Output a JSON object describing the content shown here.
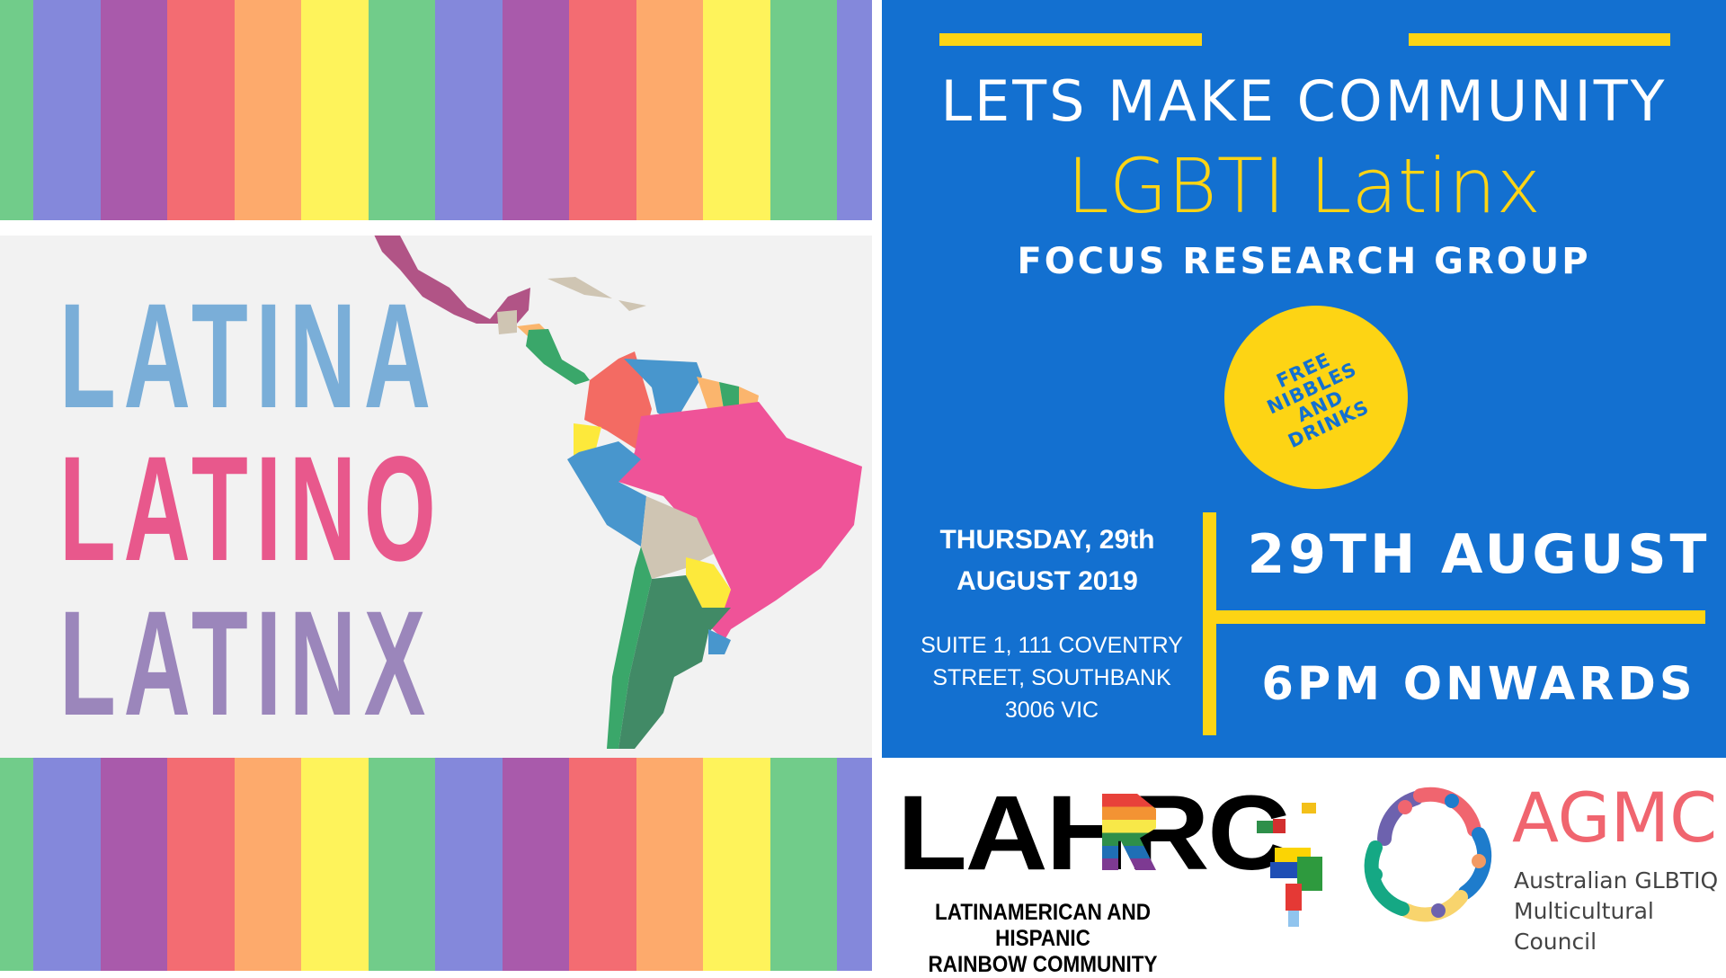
{
  "stripe_colors": [
    "#71cc8a",
    "#8488db",
    "#a95aab",
    "#f36c72",
    "#fdaa6c",
    "#fef35b",
    "#71cc8a",
    "#8488db",
    "#a95aab",
    "#f36c72",
    "#fdaa6c",
    "#fef35b",
    "#71cc8a",
    "#8488db"
  ],
  "left_panel": {
    "words": [
      {
        "text": "LATINA",
        "color": "#7aaed8"
      },
      {
        "text": "LATINO",
        "color": "#e8588c"
      },
      {
        "text": "LATINX",
        "color": "#9b86bb"
      }
    ],
    "map_image": "latin-america-map"
  },
  "event": {
    "headline": "LETS MAKE COMMUNITY",
    "subtitle": "LGBTI Latinx",
    "tagline": "FOCUS RESEARCH GROUP",
    "badge_lines": [
      "FREE",
      "NIBBLES",
      "AND",
      "DRINKS"
    ],
    "date_line1": "THURSDAY, 29th",
    "date_line2": "AUGUST 2019",
    "address_line1": "SUITE 1, 111 COVENTRY",
    "address_line2": "STREET, SOUTHBANK",
    "address_line3": "3006 VIC",
    "date_big": "29TH AUGUST",
    "time_big": "6PM ONWARDS"
  },
  "colors": {
    "blue": "#1370d0",
    "yellow": "#fdd414",
    "gray_panel": "#f2f2f2"
  },
  "logos": {
    "lahrc": {
      "mark": "LAHRC",
      "line1": "LATINAMERICAN AND HISPANIC",
      "line2": "RAINBOW COMMUNITY"
    },
    "agmc": {
      "mark": "AGMC",
      "line1": "Australian GLBTIQ",
      "line2": "Multicultural Council"
    }
  }
}
